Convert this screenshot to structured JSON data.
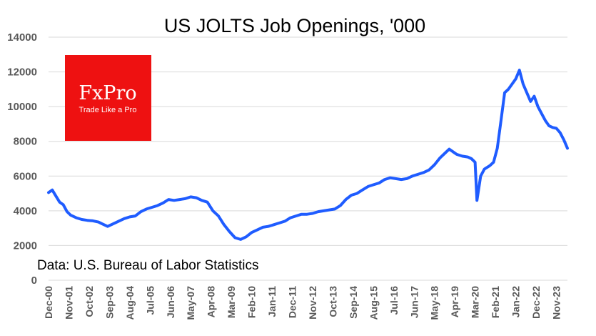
{
  "chart_data": {
    "type": "line",
    "title": "US JOLTS Job Openings, '000",
    "source": "Data: U.S. Bureau of Labor Statistics",
    "ylim": [
      0,
      14000
    ],
    "yticks": [
      0,
      2000,
      4000,
      6000,
      8000,
      10000,
      12000,
      14000
    ],
    "ytick_labels": [
      "0",
      "2000",
      "4000",
      "6000",
      "8000",
      "10000",
      "12000",
      "14000"
    ],
    "xlim": [
      "2000-12",
      "2024-05"
    ],
    "xtick_labels": [
      "Dec-00",
      "Nov-01",
      "Oct-02",
      "Sep-03",
      "Aug-04",
      "Jul-05",
      "Jun-06",
      "May-07",
      "Apr-08",
      "Mar-09",
      "Feb-10",
      "Jan-11",
      "Dec-11",
      "Nov-12",
      "Oct-13",
      "Sep-14",
      "Aug-15",
      "Jul-16",
      "Jun-17",
      "May-18",
      "Apr-19",
      "Mar-20",
      "Feb-21",
      "Jan-22",
      "Dec-22",
      "Nov-23"
    ],
    "xtick_dates": [
      "2000-12",
      "2001-11",
      "2002-10",
      "2003-09",
      "2004-08",
      "2005-07",
      "2006-06",
      "2007-05",
      "2008-04",
      "2009-03",
      "2010-02",
      "2011-01",
      "2011-12",
      "2012-11",
      "2013-10",
      "2014-09",
      "2015-08",
      "2016-07",
      "2017-06",
      "2018-05",
      "2019-04",
      "2020-03",
      "2021-02",
      "2022-01",
      "2022-12",
      "2023-11"
    ],
    "grid": true,
    "series": [
      {
        "color": "#1f5cff",
        "points": [
          [
            "2000-12",
            5050
          ],
          [
            "2001-02",
            5200
          ],
          [
            "2001-04",
            4850
          ],
          [
            "2001-06",
            4500
          ],
          [
            "2001-08",
            4350
          ],
          [
            "2001-10",
            3950
          ],
          [
            "2001-12",
            3750
          ],
          [
            "2002-03",
            3600
          ],
          [
            "2002-06",
            3500
          ],
          [
            "2002-09",
            3450
          ],
          [
            "2002-12",
            3420
          ],
          [
            "2003-03",
            3350
          ],
          [
            "2003-05",
            3250
          ],
          [
            "2003-08",
            3100
          ],
          [
            "2003-11",
            3250
          ],
          [
            "2004-02",
            3400
          ],
          [
            "2004-05",
            3550
          ],
          [
            "2004-08",
            3650
          ],
          [
            "2004-11",
            3700
          ],
          [
            "2005-02",
            3950
          ],
          [
            "2005-05",
            4100
          ],
          [
            "2005-08",
            4200
          ],
          [
            "2005-11",
            4300
          ],
          [
            "2006-02",
            4450
          ],
          [
            "2006-05",
            4650
          ],
          [
            "2006-08",
            4600
          ],
          [
            "2006-11",
            4650
          ],
          [
            "2007-02",
            4700
          ],
          [
            "2007-05",
            4800
          ],
          [
            "2007-08",
            4750
          ],
          [
            "2007-11",
            4600
          ],
          [
            "2008-02",
            4500
          ],
          [
            "2008-05",
            4000
          ],
          [
            "2008-08",
            3700
          ],
          [
            "2008-11",
            3200
          ],
          [
            "2009-02",
            2800
          ],
          [
            "2009-05",
            2450
          ],
          [
            "2009-08",
            2350
          ],
          [
            "2009-11",
            2500
          ],
          [
            "2010-02",
            2750
          ],
          [
            "2010-05",
            2900
          ],
          [
            "2010-08",
            3050
          ],
          [
            "2010-11",
            3100
          ],
          [
            "2011-02",
            3200
          ],
          [
            "2011-05",
            3300
          ],
          [
            "2011-08",
            3400
          ],
          [
            "2011-11",
            3600
          ],
          [
            "2012-02",
            3700
          ],
          [
            "2012-05",
            3800
          ],
          [
            "2012-08",
            3800
          ],
          [
            "2012-11",
            3850
          ],
          [
            "2013-02",
            3950
          ],
          [
            "2013-05",
            4000
          ],
          [
            "2013-08",
            4050
          ],
          [
            "2013-11",
            4100
          ],
          [
            "2014-02",
            4300
          ],
          [
            "2014-05",
            4650
          ],
          [
            "2014-08",
            4900
          ],
          [
            "2014-11",
            5000
          ],
          [
            "2015-02",
            5200
          ],
          [
            "2015-05",
            5400
          ],
          [
            "2015-08",
            5500
          ],
          [
            "2015-11",
            5600
          ],
          [
            "2016-02",
            5800
          ],
          [
            "2016-05",
            5900
          ],
          [
            "2016-08",
            5850
          ],
          [
            "2016-11",
            5800
          ],
          [
            "2017-02",
            5850
          ],
          [
            "2017-05",
            6000
          ],
          [
            "2017-08",
            6100
          ],
          [
            "2017-11",
            6200
          ],
          [
            "2018-02",
            6350
          ],
          [
            "2018-05",
            6650
          ],
          [
            "2018-08",
            7050
          ],
          [
            "2018-11",
            7350
          ],
          [
            "2019-01",
            7550
          ],
          [
            "2019-03",
            7400
          ],
          [
            "2019-05",
            7250
          ],
          [
            "2019-08",
            7150
          ],
          [
            "2019-11",
            7100
          ],
          [
            "2020-01",
            7000
          ],
          [
            "2020-03",
            6800
          ],
          [
            "2020-04",
            4600
          ],
          [
            "2020-06",
            6000
          ],
          [
            "2020-08",
            6400
          ],
          [
            "2020-11",
            6600
          ],
          [
            "2021-01",
            6800
          ],
          [
            "2021-03",
            7600
          ],
          [
            "2021-05",
            9200
          ],
          [
            "2021-07",
            10800
          ],
          [
            "2021-09",
            11000
          ],
          [
            "2021-11",
            11300
          ],
          [
            "2022-01",
            11600
          ],
          [
            "2022-03",
            12100
          ],
          [
            "2022-05",
            11300
          ],
          [
            "2022-07",
            10800
          ],
          [
            "2022-09",
            10300
          ],
          [
            "2022-11",
            10600
          ],
          [
            "2023-01",
            10000
          ],
          [
            "2023-03",
            9600
          ],
          [
            "2023-05",
            9200
          ],
          [
            "2023-07",
            8900
          ],
          [
            "2023-09",
            8800
          ],
          [
            "2023-11",
            8750
          ],
          [
            "2024-01",
            8500
          ],
          [
            "2024-03",
            8100
          ],
          [
            "2024-05",
            7600
          ]
        ]
      }
    ]
  },
  "logo": {
    "name": "FxPro",
    "tagline": "Trade Like a Pro",
    "bg_color": "#ee1111"
  }
}
